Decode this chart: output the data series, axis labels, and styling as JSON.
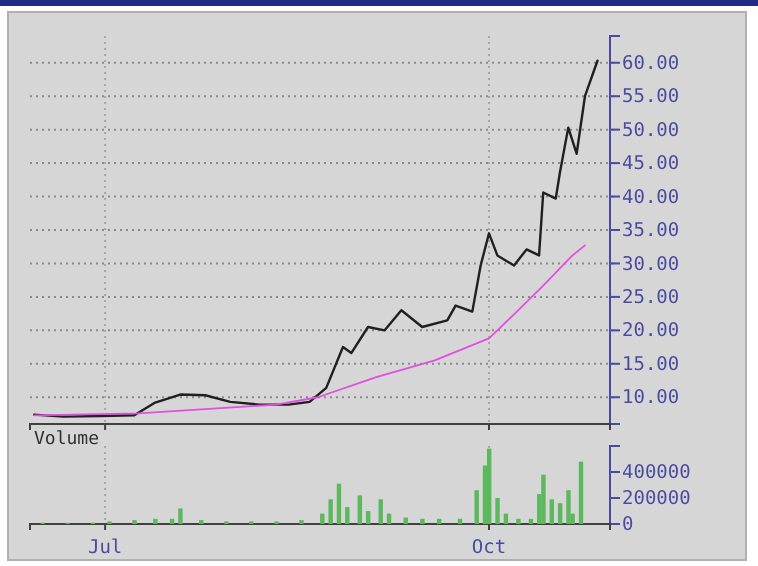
{
  "chart_data": [
    {
      "type": "line",
      "x": [
        "--06-14",
        "--06-21",
        "--06-30",
        "--07-08",
        "--07-13",
        "--07-19",
        "--07-25",
        "--07-31",
        "--08-07",
        "--08-14",
        "--08-19",
        "--08-23",
        "--08-27",
        "--08-29",
        "--09-02",
        "--09-06",
        "--09-10",
        "--09-15",
        "--09-21",
        "--09-23",
        "--09-27",
        "--09-29",
        "--10-01",
        "--10-03",
        "--10-07",
        "--10-10",
        "--10-13",
        "--10-14",
        "--10-17",
        "--10-18",
        "--10-20",
        "--10-22",
        "--10-24",
        "--10-27"
      ],
      "series": [
        {
          "color": "#202020",
          "values": [
            7.4,
            7.1,
            7.2,
            7.3,
            9.2,
            10.4,
            10.3,
            9.3,
            8.9,
            8.9,
            9.3,
            11.4,
            17.5,
            16.6,
            20.5,
            20,
            23,
            20.5,
            21.5,
            23.7,
            22.8,
            29.7,
            34.5,
            31.2,
            29.7,
            32.1,
            31.2,
            40.6,
            39.7,
            43.6,
            50.3,
            46.4,
            55,
            60.3
          ]
        },
        {
          "color": "#e050e0",
          "x": [
            "--06-14",
            "--07-09",
            "--07-24",
            "--08-11",
            "--08-21",
            "--09-04",
            "--09-18",
            "--10-01",
            "--10-07",
            "--10-14",
            "--10-21",
            "--10-24"
          ],
          "values": [
            7.3,
            7.6,
            8.2,
            8.9,
            10,
            13,
            15.5,
            18.8,
            22.4,
            26.7,
            31.2,
            32.7
          ]
        }
      ],
      "xlim": [
        "--06-13",
        "--10-30"
      ],
      "xticks": [
        {
          "value": "--07-01",
          "label": null
        },
        {
          "value": "--10-01",
          "label": null
        }
      ],
      "ylim": [
        6,
        64
      ],
      "yticks": [
        {
          "value": 10,
          "label": "10.00"
        },
        {
          "value": 15,
          "label": "15.00"
        },
        {
          "value": 20,
          "label": "20.00"
        },
        {
          "value": 25,
          "label": "25.00"
        },
        {
          "value": 30,
          "label": "30.00"
        },
        {
          "value": 35,
          "label": "35.00"
        },
        {
          "value": 40,
          "label": "40.00"
        },
        {
          "value": 45,
          "label": "45.00"
        },
        {
          "value": 50,
          "label": "50.00"
        },
        {
          "value": 55,
          "label": "55.00"
        },
        {
          "value": 60,
          "label": "60.00"
        }
      ],
      "grid": true,
      "tick_labels": "y",
      "marker": "none"
    },
    {
      "type": "bar",
      "ylabel": "Volume",
      "color": "#5cb85c",
      "x": [
        "--06-16",
        "--06-22",
        "--06-28",
        "--07-02",
        "--07-08",
        "--07-13",
        "--07-17",
        "--07-19",
        "--07-24",
        "--07-30",
        "--08-05",
        "--08-11",
        "--08-17",
        "--08-22",
        "--08-24",
        "--08-26",
        "--08-28",
        "--08-31",
        "--09-02",
        "--09-05",
        "--09-07",
        "--09-11",
        "--09-15",
        "--09-19",
        "--09-24",
        "--09-28",
        "--09-30",
        "--10-01",
        "--10-03",
        "--10-05",
        "--10-08",
        "--10-11",
        "--10-13",
        "--10-14",
        "--10-16",
        "--10-18",
        "--10-20",
        "--10-21",
        "--10-23"
      ],
      "values": [
        10000,
        10000,
        10000,
        20000,
        30000,
        40000,
        40000,
        120000,
        30000,
        20000,
        20000,
        20000,
        30000,
        80000,
        190000,
        310000,
        130000,
        220000,
        100000,
        190000,
        80000,
        50000,
        40000,
        40000,
        40000,
        260000,
        450000,
        580000,
        200000,
        80000,
        40000,
        40000,
        230000,
        380000,
        190000,
        160000,
        260000,
        80000,
        480000
      ],
      "xlim": [
        "--06-13",
        "--10-30"
      ],
      "xticks": [
        {
          "value": "--07-01",
          "label": "Jul"
        },
        {
          "value": "--10-01",
          "label": "Oct"
        }
      ],
      "ylim": [
        0,
        600000
      ],
      "yticks": [
        0,
        200000,
        400000
      ],
      "grid": "x"
    }
  ]
}
